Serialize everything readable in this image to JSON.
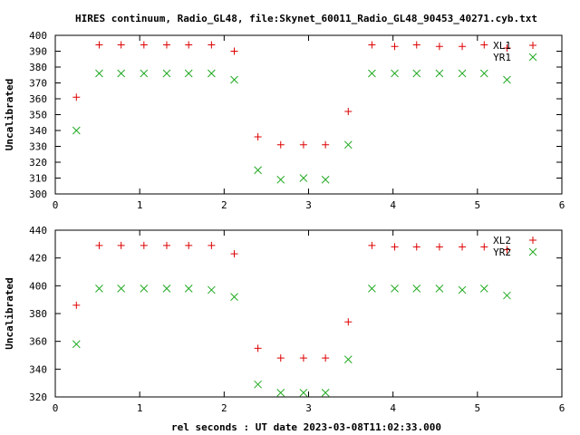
{
  "title": "HIRES continuum, Radio_GL48, file:Skynet_60011_Radio_GL48_90453_40271.cyb.txt",
  "xlabel": "rel seconds : UT date 2023-03-08T11:02:33.000",
  "chart_data": [
    {
      "type": "scatter",
      "ylabel": "Uncalibrated",
      "xlim": [
        0,
        6
      ],
      "ylim": [
        300,
        400
      ],
      "xticks": [
        0,
        1,
        2,
        3,
        4,
        5,
        6
      ],
      "yticks": [
        300,
        310,
        320,
        330,
        340,
        350,
        360,
        370,
        380,
        390,
        400
      ],
      "legend_position": "top-right",
      "x": [
        0.25,
        0.52,
        0.78,
        1.05,
        1.32,
        1.58,
        1.85,
        2.12,
        2.4,
        2.67,
        2.94,
        3.2,
        3.47,
        3.75,
        4.02,
        4.28,
        4.55,
        4.82,
        5.08,
        5.35
      ],
      "series": [
        {
          "name": "XL1",
          "marker": "+",
          "color": "#dd0000",
          "values": [
            361,
            394,
            394,
            394,
            394,
            394,
            394,
            390,
            336,
            331,
            331,
            331,
            352,
            394,
            393,
            394,
            393,
            393,
            394,
            392
          ]
        },
        {
          "name": "YR1",
          "marker": "x",
          "color": "#22aa22",
          "values": [
            340,
            376,
            376,
            376,
            376,
            376,
            376,
            372,
            315,
            309,
            310,
            309,
            331,
            376,
            376,
            376,
            376,
            376,
            376,
            372
          ]
        }
      ]
    },
    {
      "type": "scatter",
      "ylabel": "Uncalibrated",
      "xlim": [
        0,
        6
      ],
      "ylim": [
        320,
        440
      ],
      "xticks": [
        0,
        1,
        2,
        3,
        4,
        5,
        6
      ],
      "yticks": [
        320,
        340,
        360,
        380,
        400,
        420,
        440
      ],
      "legend_position": "top-right",
      "x": [
        0.25,
        0.52,
        0.78,
        1.05,
        1.32,
        1.58,
        1.85,
        2.12,
        2.4,
        2.67,
        2.94,
        3.2,
        3.47,
        3.75,
        4.02,
        4.28,
        4.55,
        4.82,
        5.08,
        5.35
      ],
      "series": [
        {
          "name": "XL2",
          "marker": "+",
          "color": "#dd0000",
          "values": [
            386,
            429,
            429,
            429,
            429,
            429,
            429,
            423,
            355,
            348,
            348,
            348,
            374,
            429,
            428,
            428,
            428,
            428,
            428,
            426
          ]
        },
        {
          "name": "YR2",
          "marker": "x",
          "color": "#22aa22",
          "values": [
            358,
            398,
            398,
            398,
            398,
            398,
            397,
            392,
            329,
            323,
            323,
            323,
            347,
            398,
            398,
            398,
            398,
            397,
            398,
            393
          ]
        }
      ]
    }
  ]
}
